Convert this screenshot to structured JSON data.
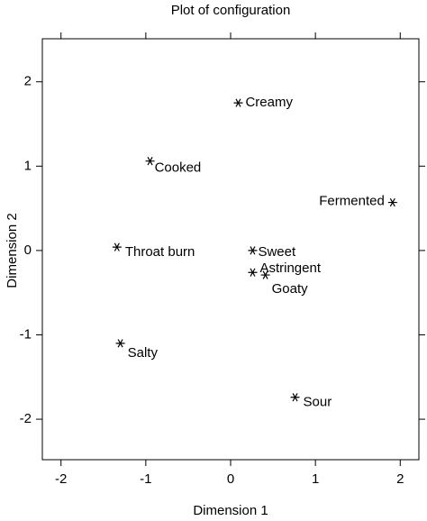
{
  "chart_data": {
    "type": "scatter",
    "title": "Plot of configuration",
    "x_label": "Dimension 1",
    "y_label": "Dimension 2",
    "labels": [
      "Creamy",
      "Cooked",
      "Fermented",
      "Throat burn",
      "Sweet",
      "Astringent",
      "Goaty",
      "Salty",
      "Sour"
    ],
    "x": [
      0.09,
      -0.95,
      1.91,
      -1.34,
      0.26,
      0.26,
      0.41,
      -1.3,
      0.76
    ],
    "y": [
      1.75,
      1.06,
      0.57,
      0.04,
      0.0,
      -0.26,
      -0.29,
      -1.1,
      -1.74
    ],
    "color": "#000000",
    "xlim": [
      -2.22,
      2.22
    ],
    "ylim": [
      -2.48,
      2.51
    ],
    "xticks": [
      -2,
      -1,
      0,
      1,
      2
    ],
    "yticks": [
      -2,
      -1,
      0,
      1,
      2
    ]
  }
}
